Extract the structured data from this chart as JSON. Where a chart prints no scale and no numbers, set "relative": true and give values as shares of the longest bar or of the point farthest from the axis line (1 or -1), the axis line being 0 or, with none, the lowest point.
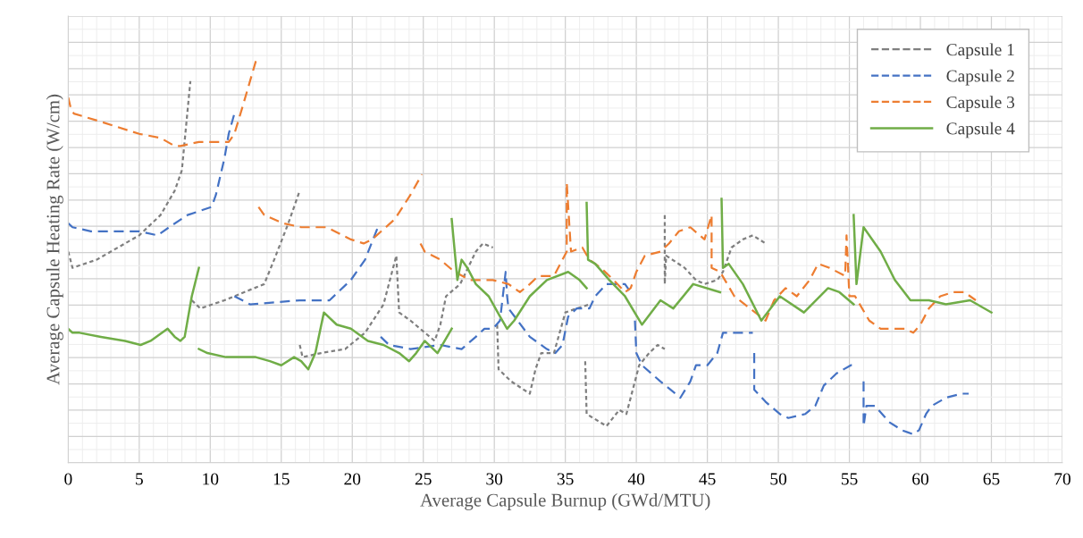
{
  "chart_data": {
    "type": "line",
    "xlabel": "Average Capsule Burnup (GWd/MTU)",
    "ylabel": "Average Capsule Heating Rate (W/cm)",
    "relative": true,
    "xlim": [
      0,
      70
    ],
    "xticks": [
      0,
      5,
      10,
      15,
      20,
      25,
      30,
      35,
      40,
      45,
      50,
      55,
      60,
      65,
      70
    ],
    "grid": true,
    "legend": "top right",
    "series": [
      {
        "name": "Capsule 1",
        "color": "#7f7f7f",
        "line_style": "dotted",
        "x": [
          0,
          0.3,
          2,
          4,
          5,
          6.5,
          7.5,
          8,
          8.3,
          8.6,
          null,
          8.7,
          9.3,
          11,
          13.8,
          14.5,
          15.5,
          16.3,
          null,
          16.3,
          16.5,
          17.8,
          19.5,
          20.9,
          22.2,
          23.1,
          23.3,
          24.1,
          25.8,
          26.2,
          26.6,
          27.6,
          28.7,
          29.2,
          29.9,
          null,
          30.2,
          30.3,
          31.2,
          32.5,
          32.9,
          33.3,
          34.2,
          34.6,
          35,
          35.8,
          36.7,
          null,
          36.4,
          36.5,
          37.9,
          38.8,
          39.3,
          40.2,
          40.9,
          41.5,
          42,
          null,
          42,
          42,
          42.1,
          43.4,
          44.2,
          44.8,
          45.7,
          46.1,
          46.7,
          47.5,
          48.2,
          49.1
        ],
        "values": [
          0.52,
          0.48,
          0.5,
          0.54,
          0.56,
          0.61,
          0.67,
          0.72,
          0.83,
          0.94,
          null,
          0.4,
          0.38,
          0.4,
          0.44,
          0.5,
          0.59,
          0.67,
          null,
          0.29,
          0.26,
          0.27,
          0.28,
          0.32,
          0.39,
          0.51,
          0.37,
          0.35,
          0.3,
          0.34,
          0.41,
          0.44,
          0.52,
          0.54,
          0.53,
          null,
          0.34,
          0.23,
          0.2,
          0.17,
          0.23,
          0.27,
          0.27,
          0.32,
          0.37,
          0.38,
          0.39,
          null,
          0.25,
          0.12,
          0.09,
          0.13,
          0.12,
          0.24,
          0.27,
          0.29,
          0.28,
          null,
          0.61,
          0.44,
          0.51,
          0.48,
          0.45,
          0.44,
          0.45,
          0.47,
          0.53,
          0.55,
          0.56,
          0.54
        ]
      },
      {
        "name": "Capsule 2",
        "color": "#4472c4",
        "line_style": "dashed",
        "x": [
          0,
          0.3,
          1.6,
          5,
          6.3,
          7.1,
          8.4,
          10.1,
          10.4,
          11,
          11.3,
          11.7,
          null,
          11.7,
          12.8,
          16.3,
          18.4,
          19.9,
          20.9,
          21.8,
          null,
          22,
          22.6,
          24.1,
          26.2,
          27.7,
          28.7,
          29.3,
          29.9,
          30.4,
          30.8,
          30.9,
          31,
          32.5,
          33.7,
          34.3,
          34.8,
          35.2,
          35.8,
          36.7,
          37.1,
          37.9,
          39.2,
          39.6,
          null,
          39.9,
          40,
          40.4,
          41.7,
          43.1,
          43.8,
          44.2,
          45,
          45.7,
          46.1,
          47.2,
          48.2,
          null,
          48.3,
          48.3,
          49.1,
          50.1,
          50.7,
          51.9,
          52.6,
          53.2,
          54.1,
          55.1,
          55.3,
          null,
          56,
          56,
          56.2,
          56.8,
          57.8,
          58.7,
          59.5,
          59.9,
          60.4,
          60.8,
          61.8,
          62.9,
          63.4
        ],
        "values": [
          0.59,
          0.58,
          0.57,
          0.57,
          0.56,
          0.58,
          0.61,
          0.63,
          0.66,
          0.75,
          0.81,
          0.86,
          null,
          0.41,
          0.39,
          0.4,
          0.4,
          0.45,
          0.5,
          0.58,
          null,
          0.31,
          0.29,
          0.28,
          0.29,
          0.28,
          0.31,
          0.33,
          0.33,
          0.35,
          0.47,
          0.41,
          0.38,
          0.31,
          0.28,
          0.27,
          0.29,
          0.36,
          0.38,
          0.38,
          0.41,
          0.44,
          0.44,
          0.42,
          null,
          0.35,
          0.27,
          0.24,
          0.2,
          0.16,
          0.2,
          0.24,
          0.24,
          0.27,
          0.32,
          0.32,
          0.32,
          null,
          0.27,
          0.18,
          0.15,
          0.12,
          0.11,
          0.12,
          0.14,
          0.19,
          0.22,
          0.24,
          0.24,
          null,
          0.2,
          0.09,
          0.14,
          0.14,
          0.1,
          0.08,
          0.07,
          0.08,
          0.12,
          0.14,
          0.16,
          0.17,
          0.17
        ]
      },
      {
        "name": "Capsule 3",
        "color": "#ed7d31",
        "line_style": "dashed",
        "x": [
          0,
          0.2,
          0.4,
          2.3,
          5,
          6.5,
          7.5,
          7.9,
          9.2,
          11.3,
          11.7,
          12.3,
          13.3,
          null,
          13.4,
          13.8,
          15.1,
          16.4,
          18.2,
          19.9,
          20.8,
          21.4,
          23,
          24.1,
          24.9,
          null,
          24.8,
          25.1,
          26.2,
          27.2,
          28.3,
          29.9,
          31,
          31.8,
          32.5,
          33.1,
          34.2,
          34.8,
          35.1,
          35.1,
          35.4,
          36.2,
          36.7,
          37.5,
          38.4,
          39.2,
          39.6,
          40,
          40.6,
          41.7,
          42.3,
          43,
          43.8,
          44.8,
          45.3,
          45.3,
          45.9,
          46.9,
          48,
          49.1,
          49.7,
          50.5,
          51.3,
          52.2,
          52.8,
          53.6,
          54.7,
          54.8,
          55,
          55.4,
          56.4,
          57.2,
          58,
          58.9,
          59.5,
          60,
          60.6,
          61.4,
          62.3,
          63.1,
          63.9
        ],
        "values": [
          0.9,
          0.87,
          0.86,
          0.84,
          0.81,
          0.8,
          0.78,
          0.78,
          0.79,
          0.79,
          0.81,
          0.88,
          1,
          null,
          0.63,
          0.61,
          0.59,
          0.58,
          0.58,
          0.55,
          0.54,
          0.55,
          0.6,
          0.66,
          0.71,
          null,
          0.54,
          0.52,
          0.5,
          0.47,
          0.45,
          0.45,
          0.44,
          0.42,
          0.44,
          0.46,
          0.46,
          0.5,
          0.52,
          0.69,
          0.52,
          0.53,
          0.5,
          0.48,
          0.45,
          0.42,
          0.43,
          0.47,
          0.51,
          0.52,
          0.54,
          0.57,
          0.58,
          0.55,
          0.61,
          0.48,
          0.47,
          0.41,
          0.38,
          0.35,
          0.4,
          0.43,
          0.41,
          0.45,
          0.49,
          0.48,
          0.46,
          0.56,
          0.41,
          0.41,
          0.35,
          0.33,
          0.33,
          0.33,
          0.32,
          0.34,
          0.38,
          0.41,
          0.42,
          0.42,
          0.4
        ]
      },
      {
        "name": "Capsule 4",
        "color": "#70ad47",
        "line_style": "solid",
        "x": [
          0,
          0.3,
          0.8,
          2.3,
          4,
          5.1,
          5.8,
          7,
          7.5,
          7.9,
          8.2,
          8.7,
          9.2,
          null,
          9.2,
          9.8,
          11.1,
          13.2,
          14.2,
          15,
          15.9,
          16.4,
          16.9,
          17.4,
          18,
          18.9,
          19.9,
          21.1,
          22.2,
          23.3,
          24,
          24.5,
          25.1,
          26,
          27,
          null,
          27,
          27.4,
          27.7,
          28.1,
          28.7,
          29.6,
          30.4,
          30.9,
          31.4,
          32.5,
          33.7,
          35.2,
          36,
          36.5,
          null,
          36.5,
          36.6,
          37.1,
          38.1,
          39.2,
          40.4,
          41.7,
          42.6,
          44,
          45.9,
          null,
          46,
          46.1,
          46.5,
          47.5,
          48.8,
          50.1,
          51.8,
          53.5,
          54.3,
          55.3,
          null,
          55.3,
          55.5,
          56,
          57.2,
          58.2,
          59.3,
          60.6,
          61.8,
          63.5,
          65
        ],
        "values": [
          0.33,
          0.32,
          0.32,
          0.31,
          0.3,
          0.29,
          0.3,
          0.33,
          0.31,
          0.3,
          0.31,
          0.41,
          0.48,
          null,
          0.28,
          0.27,
          0.26,
          0.26,
          0.25,
          0.24,
          0.26,
          0.25,
          0.23,
          0.27,
          0.37,
          0.34,
          0.33,
          0.3,
          0.29,
          0.27,
          0.25,
          0.27,
          0.3,
          0.27,
          0.33,
          null,
          0.6,
          0.45,
          0.5,
          0.48,
          0.44,
          0.41,
          0.36,
          0.33,
          0.35,
          0.41,
          0.45,
          0.47,
          0.45,
          0.43,
          null,
          0.64,
          0.5,
          0.49,
          0.45,
          0.41,
          0.34,
          0.4,
          0.38,
          0.44,
          0.42,
          null,
          0.65,
          0.48,
          0.49,
          0.44,
          0.35,
          0.41,
          0.37,
          0.43,
          0.42,
          0.39,
          null,
          0.61,
          0.44,
          0.58,
          0.52,
          0.45,
          0.4,
          0.4,
          0.39,
          0.4,
          0.37
        ]
      }
    ]
  }
}
